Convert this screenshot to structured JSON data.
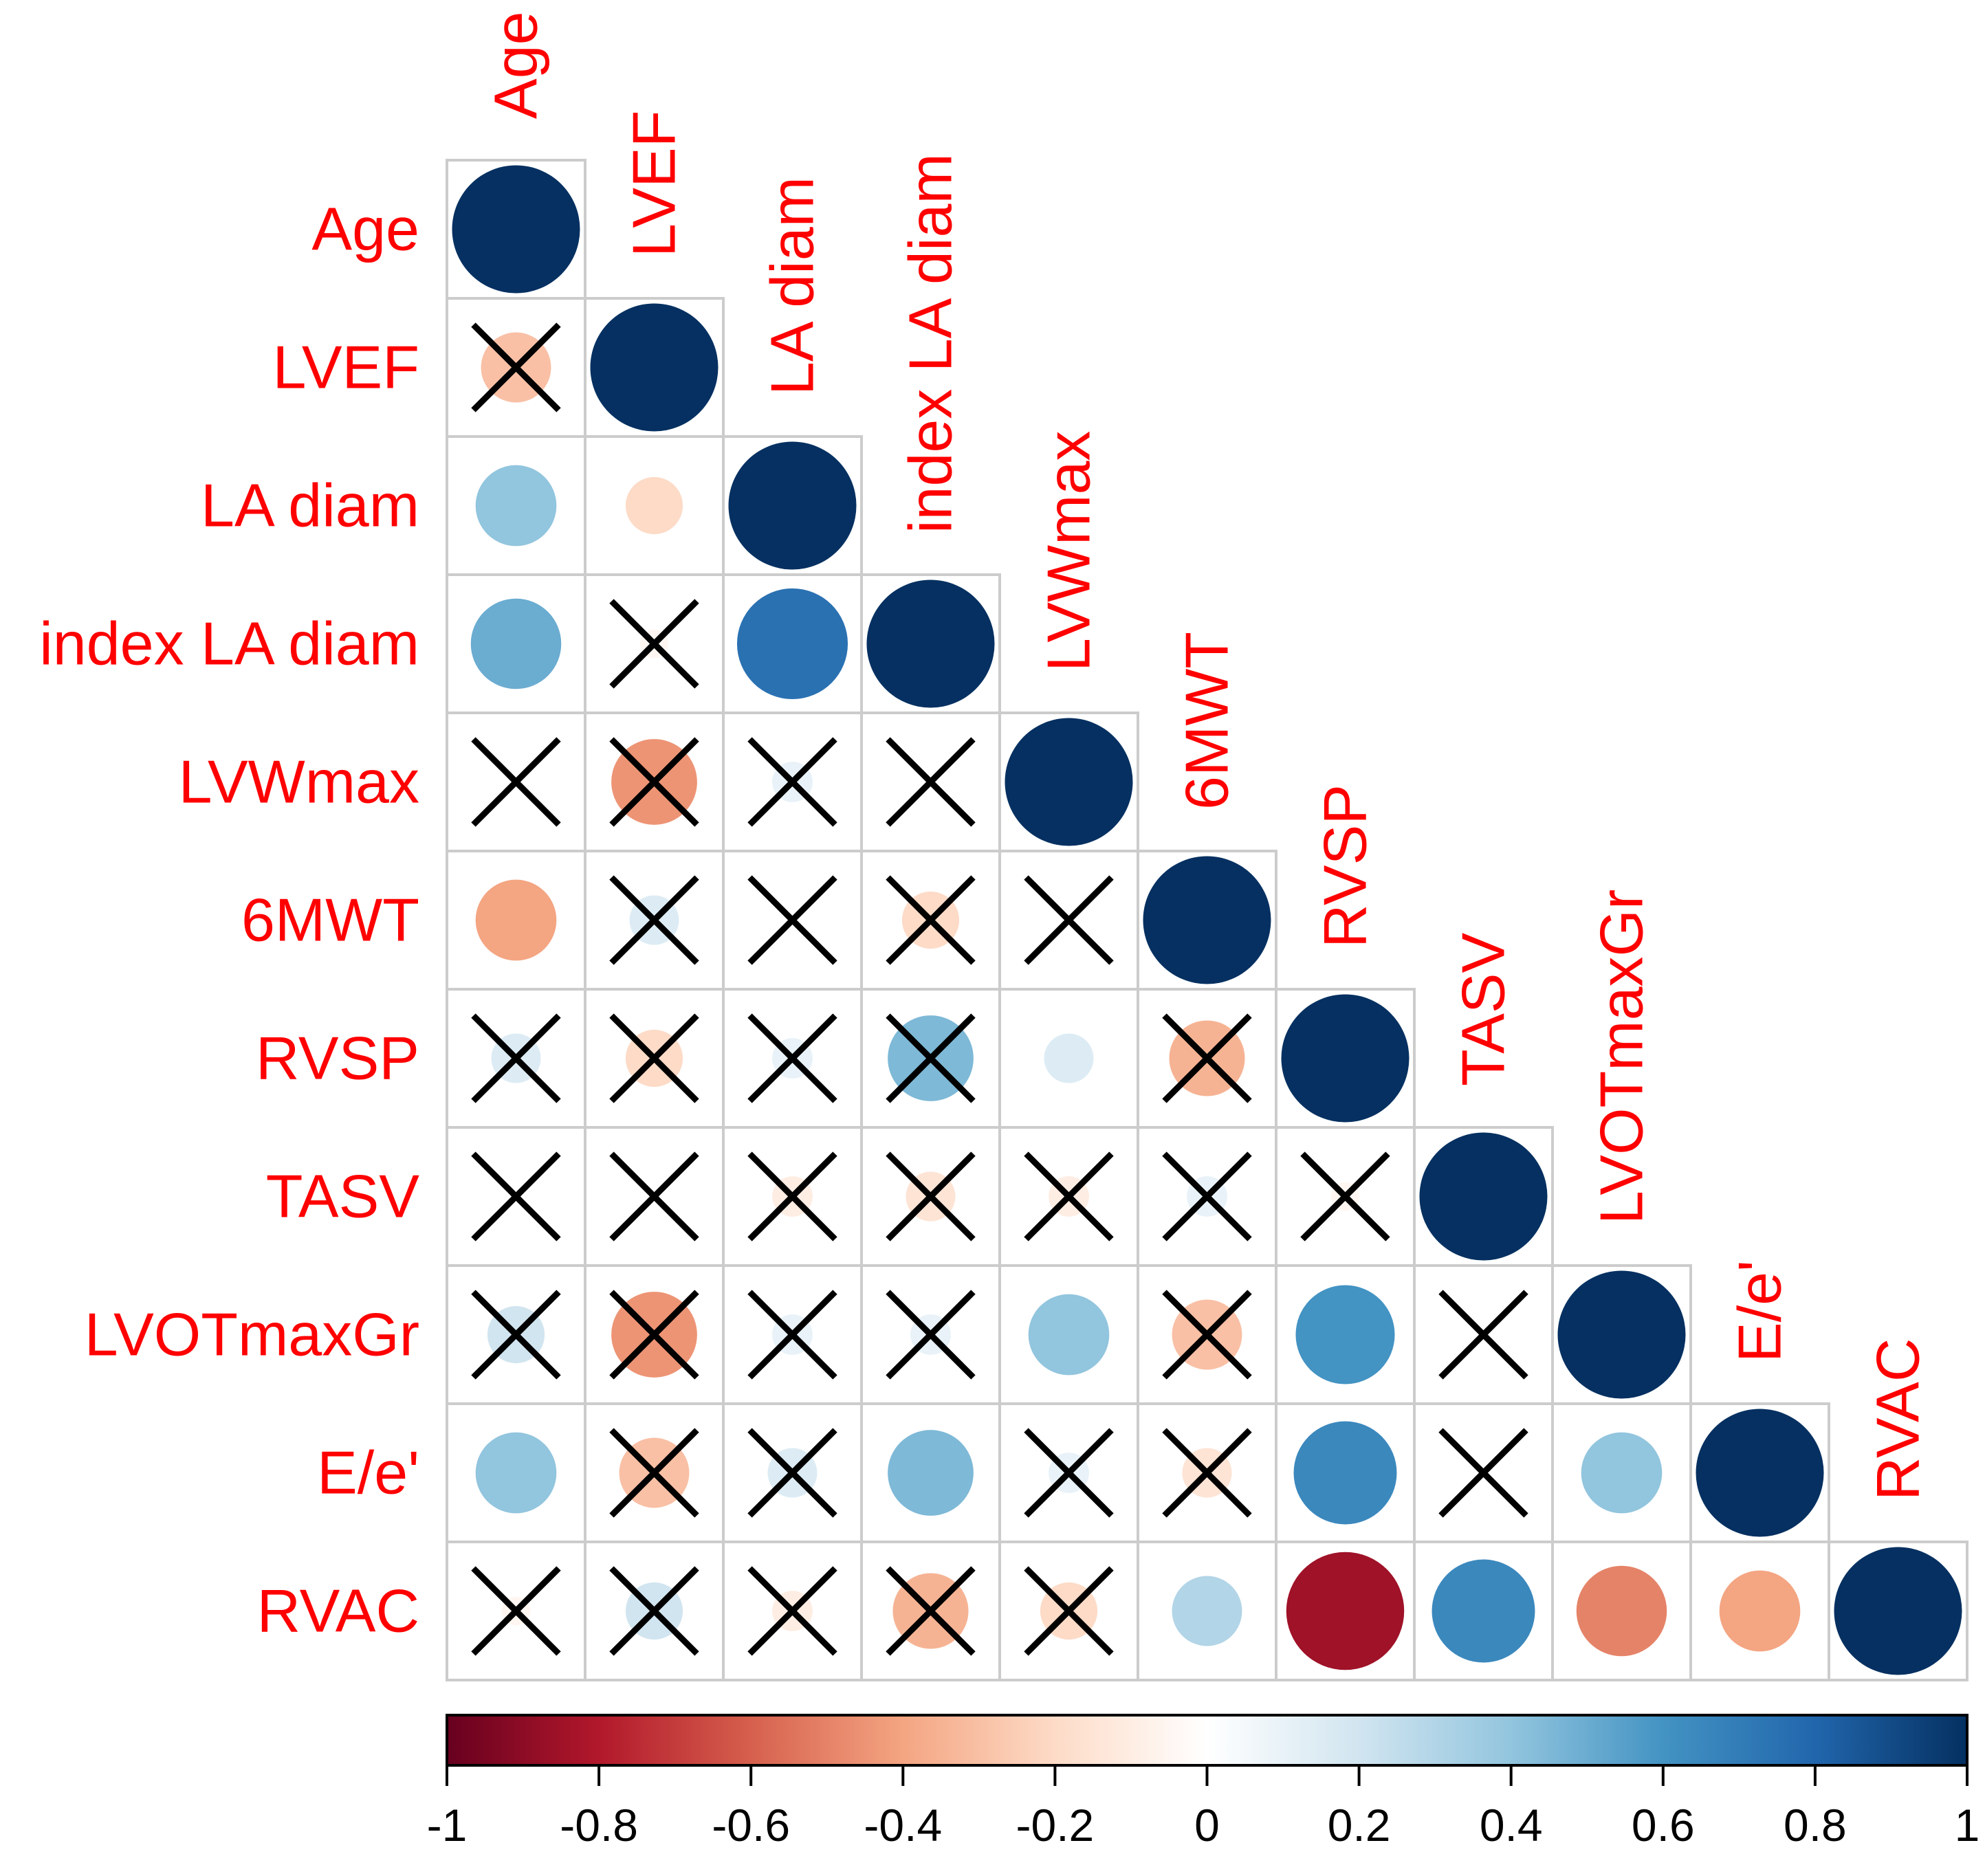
{
  "chart_data": {
    "type": "heatmap",
    "style": "correlation matrix, lower triangle, circle glyphs; crossed cells are non-significant",
    "variables": [
      "Age",
      "LVEF",
      "LA diam",
      "index LA diam",
      "LVWmax",
      "6MWT",
      "RVSP",
      "TASV",
      "LVOTmaxGr",
      "E/e'",
      "RVAC"
    ],
    "matrix": [
      [
        1
      ],
      [
        -0.3,
        1
      ],
      [
        0.4,
        -0.2,
        1
      ],
      [
        0.5,
        -0.05,
        0.75,
        1
      ],
      [
        0.0,
        -0.45,
        0.1,
        0.0,
        1
      ],
      [
        -0.4,
        0.15,
        0.0,
        -0.2,
        0.0,
        1
      ],
      [
        0.15,
        -0.2,
        0.1,
        0.45,
        0.15,
        -0.35,
        1
      ],
      [
        0.0,
        0.0,
        -0.1,
        -0.15,
        -0.1,
        0.1,
        -0.05,
        1
      ],
      [
        0.2,
        -0.45,
        0.1,
        0.1,
        0.4,
        -0.3,
        0.6,
        0.0,
        1
      ],
      [
        0.4,
        -0.3,
        0.15,
        0.45,
        0.1,
        -0.15,
        0.65,
        0.0,
        0.4,
        1
      ],
      [
        -0.05,
        0.2,
        -0.1,
        -0.35,
        -0.2,
        0.3,
        -0.85,
        0.65,
        -0.5,
        -0.4,
        1
      ]
    ],
    "crossed": [
      [
        false
      ],
      [
        true,
        false
      ],
      [
        false,
        false,
        false
      ],
      [
        false,
        true,
        false,
        false
      ],
      [
        true,
        true,
        true,
        true,
        false
      ],
      [
        false,
        true,
        true,
        true,
        true,
        false
      ],
      [
        true,
        true,
        true,
        true,
        false,
        true,
        false
      ],
      [
        true,
        true,
        true,
        true,
        true,
        true,
        true,
        false
      ],
      [
        true,
        true,
        true,
        true,
        false,
        true,
        false,
        true,
        false
      ],
      [
        false,
        true,
        true,
        false,
        true,
        true,
        false,
        true,
        false,
        false
      ],
      [
        true,
        true,
        true,
        true,
        true,
        false,
        false,
        false,
        false,
        false,
        false
      ]
    ],
    "colorbar": {
      "range": [
        -1,
        1
      ],
      "ticks": [
        "-1",
        "-0.8",
        "-0.6",
        "-0.4",
        "-0.2",
        "0",
        "0.2",
        "0.4",
        "0.6",
        "0.8",
        "1"
      ],
      "colors": [
        "#67001f",
        "#b2182b",
        "#d6604d",
        "#f4a582",
        "#fddbc7",
        "#ffffff",
        "#d1e5f0",
        "#92c5de",
        "#4393c3",
        "#2166ac",
        "#053061"
      ]
    },
    "label_color": "#ff0000",
    "grid_color": "#cccccc",
    "cross_color": "#000000"
  }
}
